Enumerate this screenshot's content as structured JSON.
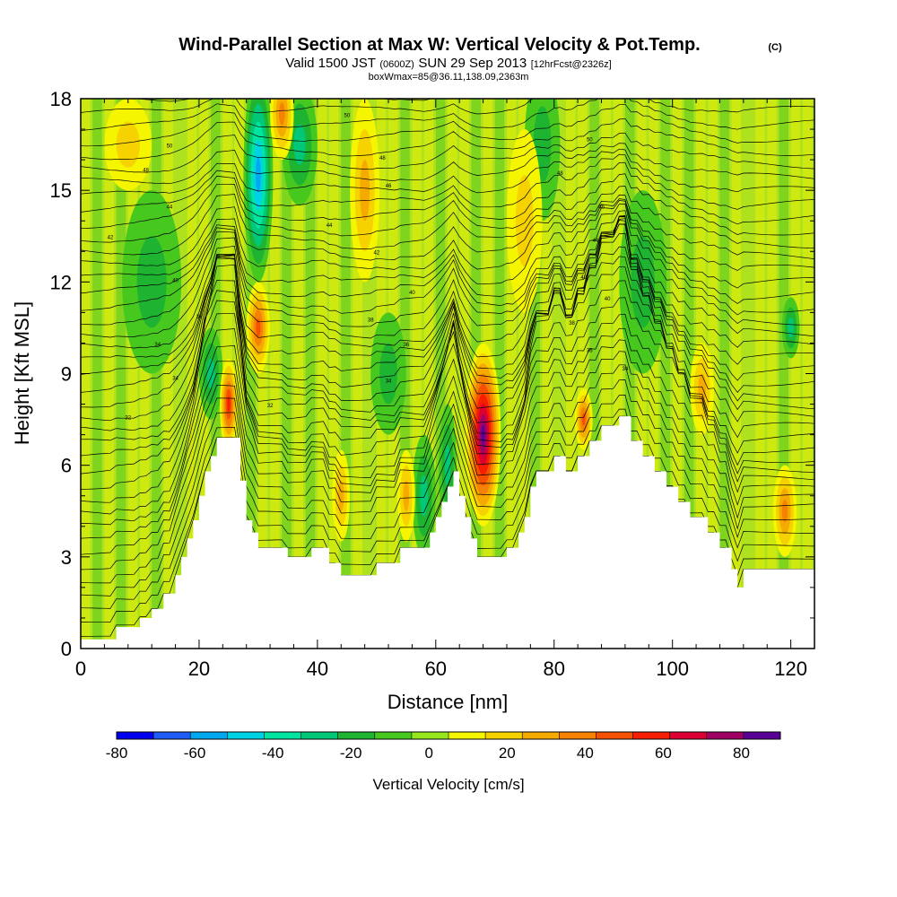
{
  "chart_data": {
    "type": "heatmap",
    "title": "Wind-Parallel Section at Max W: Vertical Velocity & Pot.Temp.",
    "title_mark": "(C)",
    "subtitle_parts": [
      "Valid 1500 JST",
      "(0600Z)",
      "SUN 29 Sep 2013",
      "[12hrFcst@2326z]"
    ],
    "subtitle2": "boxWmax=85@36.11,138.09,2363m",
    "xlabel": "Distance [nm]",
    "ylabel": "Height [Kft MSL]",
    "xlim": [
      0,
      124
    ],
    "ylim": [
      0,
      18
    ],
    "xticks": [
      0,
      20,
      40,
      60,
      80,
      100,
      120
    ],
    "yticks": [
      0,
      3,
      6,
      9,
      12,
      15,
      18
    ],
    "colorbar": {
      "label": "Vertical Velocity [cm/s]",
      "range": [
        -80,
        90
      ],
      "ticks": [
        -80,
        -60,
        -40,
        -20,
        0,
        20,
        40,
        60,
        80
      ],
      "colors": [
        "#0000f0",
        "#1e5cf5",
        "#00a8f0",
        "#00d2e6",
        "#00e6a0",
        "#00c878",
        "#1eb432",
        "#46c81e",
        "#96e61e",
        "#f5f500",
        "#f5d200",
        "#f5aa00",
        "#f58200",
        "#f55000",
        "#f51e00",
        "#dc0032",
        "#a00064",
        "#5a0096"
      ]
    },
    "terrain": [
      [
        0,
        0.3
      ],
      [
        6,
        0.3
      ],
      [
        6,
        0.7
      ],
      [
        10,
        0.7
      ],
      [
        10,
        1.0
      ],
      [
        12,
        1.0
      ],
      [
        12,
        1.3
      ],
      [
        14,
        1.3
      ],
      [
        14,
        1.8
      ],
      [
        16,
        1.8
      ],
      [
        16,
        2.4
      ],
      [
        17,
        2.4
      ],
      [
        17,
        3.0
      ],
      [
        18,
        3.0
      ],
      [
        18,
        3.6
      ],
      [
        19,
        3.6
      ],
      [
        19,
        4.2
      ],
      [
        20,
        4.2
      ],
      [
        20,
        5.0
      ],
      [
        21,
        5.0
      ],
      [
        21,
        5.8
      ],
      [
        22,
        5.8
      ],
      [
        22,
        6.3
      ],
      [
        23,
        6.3
      ],
      [
        23,
        6.9
      ],
      [
        27,
        6.9
      ],
      [
        27,
        5.5
      ],
      [
        28,
        5.5
      ],
      [
        28,
        4.2
      ],
      [
        29,
        4.2
      ],
      [
        29,
        3.8
      ],
      [
        30,
        3.8
      ],
      [
        30,
        3.3
      ],
      [
        35,
        3.3
      ],
      [
        35,
        3.0
      ],
      [
        39,
        3.0
      ],
      [
        39,
        3.3
      ],
      [
        42,
        3.3
      ],
      [
        42,
        2.8
      ],
      [
        44,
        2.8
      ],
      [
        44,
        2.4
      ],
      [
        50,
        2.4
      ],
      [
        50,
        2.8
      ],
      [
        54,
        2.8
      ],
      [
        54,
        3.3
      ],
      [
        59,
        3.3
      ],
      [
        59,
        3.8
      ],
      [
        60,
        3.8
      ],
      [
        60,
        4.3
      ],
      [
        61,
        4.3
      ],
      [
        61,
        4.8
      ],
      [
        62,
        4.8
      ],
      [
        62,
        5.3
      ],
      [
        63,
        5.3
      ],
      [
        63,
        5.8
      ],
      [
        64,
        5.8
      ],
      [
        64,
        5.0
      ],
      [
        65,
        5.0
      ],
      [
        65,
        4.3
      ],
      [
        66,
        4.3
      ],
      [
        66,
        3.6
      ],
      [
        67,
        3.6
      ],
      [
        67,
        3.0
      ],
      [
        72,
        3.0
      ],
      [
        72,
        3.3
      ],
      [
        74,
        3.3
      ],
      [
        74,
        3.8
      ],
      [
        75,
        3.8
      ],
      [
        75,
        4.3
      ],
      [
        76,
        4.3
      ],
      [
        76,
        5.3
      ],
      [
        77,
        5.3
      ],
      [
        77,
        5.8
      ],
      [
        80,
        5.8
      ],
      [
        80,
        6.3
      ],
      [
        82,
        6.3
      ],
      [
        82,
        5.8
      ],
      [
        84,
        5.8
      ],
      [
        84,
        6.3
      ],
      [
        86,
        6.3
      ],
      [
        86,
        6.8
      ],
      [
        88,
        6.8
      ],
      [
        88,
        7.3
      ],
      [
        91,
        7.3
      ],
      [
        91,
        7.6
      ],
      [
        93,
        7.6
      ],
      [
        93,
        6.8
      ],
      [
        95,
        6.8
      ],
      [
        95,
        6.3
      ],
      [
        97,
        6.3
      ],
      [
        97,
        5.8
      ],
      [
        99,
        5.8
      ],
      [
        99,
        5.3
      ],
      [
        101,
        5.3
      ],
      [
        101,
        4.8
      ],
      [
        103,
        4.8
      ],
      [
        103,
        4.3
      ],
      [
        106,
        4.3
      ],
      [
        106,
        3.8
      ],
      [
        108,
        3.8
      ],
      [
        108,
        3.3
      ],
      [
        110,
        3.3
      ],
      [
        110,
        2.6
      ],
      [
        111,
        2.6
      ],
      [
        111,
        2.0
      ],
      [
        112,
        2.0
      ],
      [
        112,
        2.6
      ],
      [
        124,
        2.6
      ]
    ],
    "updrafts": [
      {
        "x": 68,
        "y": 7.0,
        "rx": 3,
        "ry": 3.0,
        "w": 85
      },
      {
        "x": 25,
        "y": 8.0,
        "rx": 1.5,
        "ry": 1.5,
        "w": 50
      },
      {
        "x": 30,
        "y": 10.5,
        "rx": 2,
        "ry": 1.5,
        "w": 40
      },
      {
        "x": 48,
        "y": 15.0,
        "rx": 2.5,
        "ry": 3.0,
        "w": 25
      },
      {
        "x": 34,
        "y": 17.5,
        "rx": 2,
        "ry": 1.5,
        "w": 30
      },
      {
        "x": 119,
        "y": 4.5,
        "rx": 2,
        "ry": 1.5,
        "w": 30
      },
      {
        "x": 85,
        "y": 7.5,
        "rx": 1.5,
        "ry": 1.0,
        "w": 40
      },
      {
        "x": 105,
        "y": 8.5,
        "rx": 2,
        "ry": 1.5,
        "w": 25
      },
      {
        "x": 55,
        "y": 5.0,
        "rx": 1.5,
        "ry": 1.5,
        "w": 25
      },
      {
        "x": 44,
        "y": 5.0,
        "rx": 1.5,
        "ry": 1.5,
        "w": 20
      },
      {
        "x": 8,
        "y": 16.5,
        "rx": 4,
        "ry": 1.5,
        "w": 15
      },
      {
        "x": 75,
        "y": 14.0,
        "rx": 3,
        "ry": 3.0,
        "w": 15
      }
    ],
    "downdrafts": [
      {
        "x": 30,
        "y": 15.5,
        "rx": 2.5,
        "ry": 3.5,
        "w": -50
      },
      {
        "x": 37,
        "y": 16.5,
        "rx": 3,
        "ry": 2.0,
        "w": -25
      },
      {
        "x": 58,
        "y": 5.0,
        "rx": 2,
        "ry": 2.0,
        "w": -25
      },
      {
        "x": 62,
        "y": 6.0,
        "rx": 1.5,
        "ry": 2.0,
        "w": -20
      },
      {
        "x": 22,
        "y": 9.0,
        "rx": 2,
        "ry": 1.5,
        "w": -20
      },
      {
        "x": 52,
        "y": 9.0,
        "rx": 3,
        "ry": 2.0,
        "w": -15
      },
      {
        "x": 120,
        "y": 10.5,
        "rx": 1.5,
        "ry": 1.0,
        "w": -25
      },
      {
        "x": 78,
        "y": 16.5,
        "rx": 3,
        "ry": 2.5,
        "w": -15
      },
      {
        "x": 95,
        "y": 12.0,
        "rx": 4,
        "ry": 3.0,
        "w": -10
      },
      {
        "x": 12,
        "y": 12.0,
        "rx": 5,
        "ry": 3.0,
        "w": -10
      }
    ],
    "theta_labels": [
      {
        "x": 15,
        "y": 16.4,
        "v": "50"
      },
      {
        "x": 11,
        "y": 15.6,
        "v": "48"
      },
      {
        "x": 15,
        "y": 14.4,
        "v": "44"
      },
      {
        "x": 5,
        "y": 13.4,
        "v": "42"
      },
      {
        "x": 16,
        "y": 12.0,
        "v": "40"
      },
      {
        "x": 20,
        "y": 10.8,
        "v": "36"
      },
      {
        "x": 13,
        "y": 9.9,
        "v": "34"
      },
      {
        "x": 16,
        "y": 8.8,
        "v": "34"
      },
      {
        "x": 8,
        "y": 7.5,
        "v": "32"
      },
      {
        "x": 45,
        "y": 17.4,
        "v": "50"
      },
      {
        "x": 51,
        "y": 16.0,
        "v": "48"
      },
      {
        "x": 52,
        "y": 15.1,
        "v": "46"
      },
      {
        "x": 42,
        "y": 13.8,
        "v": "44"
      },
      {
        "x": 50,
        "y": 12.9,
        "v": "42"
      },
      {
        "x": 56,
        "y": 11.6,
        "v": "40"
      },
      {
        "x": 49,
        "y": 10.7,
        "v": "38"
      },
      {
        "x": 55,
        "y": 9.9,
        "v": "36"
      },
      {
        "x": 52,
        "y": 8.7,
        "v": "34"
      },
      {
        "x": 32,
        "y": 7.9,
        "v": "32"
      },
      {
        "x": 86,
        "y": 16.6,
        "v": "50"
      },
      {
        "x": 81,
        "y": 15.5,
        "v": "48"
      },
      {
        "x": 88,
        "y": 14.4,
        "v": "46"
      },
      {
        "x": 87,
        "y": 13.3,
        "v": "44"
      },
      {
        "x": 85,
        "y": 12.1,
        "v": "42"
      },
      {
        "x": 89,
        "y": 11.4,
        "v": "40"
      },
      {
        "x": 83,
        "y": 10.6,
        "v": "38"
      },
      {
        "x": 86,
        "y": 9.7,
        "v": "36"
      },
      {
        "x": 92,
        "y": 9.1,
        "v": "34"
      }
    ]
  }
}
